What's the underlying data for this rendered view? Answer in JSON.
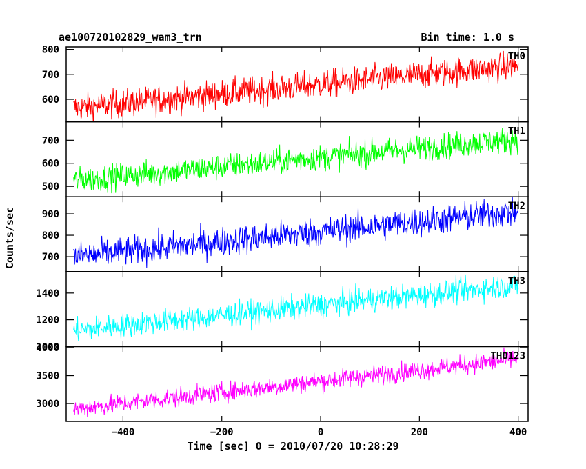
{
  "header": {
    "title": "ae100720102829_wam3_trn",
    "bin_time": "Bin time: 1.0 s"
  },
  "chart_data": {
    "type": "line",
    "title": "ae100720102829_wam3_trn",
    "subtitle": "Bin time: 1.0 s",
    "xlabel": "Time [sec] 0 = 2010/07/20 10:28:29",
    "ylabel": "Counts/sec",
    "xlim": [
      -515,
      420
    ],
    "x_ticks": [
      -400,
      -200,
      0,
      200,
      400
    ],
    "x_tick_labels": [
      "−400",
      "−200",
      "0",
      "200",
      "400"
    ],
    "x_range": [
      -500,
      400
    ],
    "panels": [
      {
        "name": "TH0",
        "color": "#ff0000",
        "ylim": [
          510,
          810
        ],
        "ticks": [
          600,
          700,
          800
        ],
        "trend_start": 565,
        "trend_end": 735,
        "noise": 28
      },
      {
        "name": "TH1",
        "color": "#00ff00",
        "ylim": [
          455,
          780
        ],
        "ticks": [
          500,
          600,
          700
        ],
        "trend_start": 525,
        "trend_end": 705,
        "noise": 28
      },
      {
        "name": "TH2",
        "color": "#0000ff",
        "ylim": [
          630,
          980
        ],
        "ticks": [
          700,
          800,
          900
        ],
        "trend_start": 700,
        "trend_end": 910,
        "noise": 34
      },
      {
        "name": "TH3",
        "color": "#00ffff",
        "ylim": [
          1000,
          1560
        ],
        "ticks": [
          1000,
          1200,
          1400
        ],
        "trend_start": 1120,
        "trend_end": 1460,
        "noise": 45
      },
      {
        "name": "TH0123",
        "color": "#ff00ff",
        "ylim": [
          2680,
          4020
        ],
        "ticks": [
          3000,
          3500,
          4000
        ],
        "trend_start": 2900,
        "trend_end": 3800,
        "noise": 85
      }
    ],
    "extra_tick_label": {
      "panel": "TH3",
      "value": 1000,
      "text": "1000"
    }
  }
}
